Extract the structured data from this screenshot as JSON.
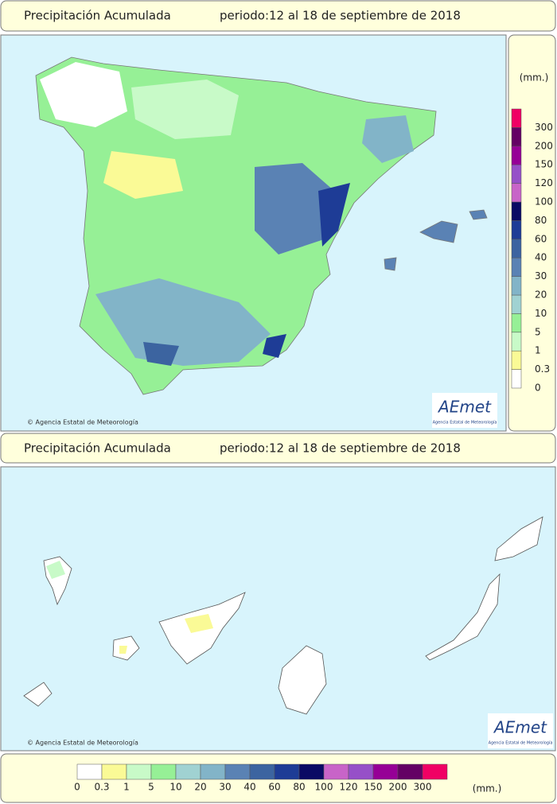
{
  "header": {
    "title": "Precipitación Acumulada",
    "period": "periodo:12 al 18 de septiembre de 2018"
  },
  "canarias_header": {
    "title": "Precipitación Acumulada",
    "period": "periodo:12 al 18 de septiembre de 2018"
  },
  "credit": "© Agencia Estatal de Meteorología",
  "canarias_credit": "© Agencia Estatal de Meteorología",
  "logo": {
    "name": "AEmet",
    "subtitle": "Agencia Estatal de Meteorología"
  },
  "canarias_logo": {
    "name": "AEmet",
    "subtitle": "Agencia Estatal de Meteorología"
  },
  "legend": {
    "unit": "(mm.)",
    "labels": [
      "0",
      "0.3",
      "1",
      "5",
      "10",
      "20",
      "30",
      "40",
      "60",
      "80",
      "100",
      "120",
      "150",
      "200",
      "300"
    ],
    "colors": [
      "#ffffff",
      "#fafa96",
      "#c8fac8",
      "#96f096",
      "#a0d2d2",
      "#82b4c8",
      "#5a82b4",
      "#3c64a0",
      "#1e3c96",
      "#0a0a64",
      "#c864c8",
      "#9650c8",
      "#960096",
      "#640064",
      "#f00064"
    ]
  },
  "bottom_legend": {
    "unit": "(mm.)"
  }
}
